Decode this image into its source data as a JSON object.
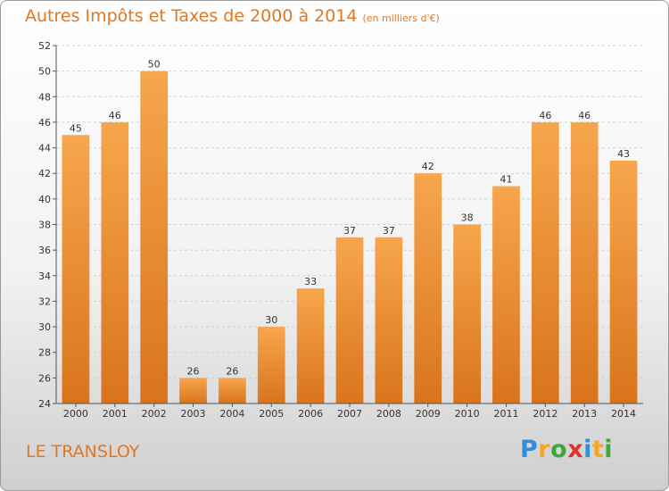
{
  "title": "Autres Impôts et Taxes de 2000 à 2014",
  "title_unit": "(en milliers d'€)",
  "town": "LE TRANSLOY",
  "logo": {
    "letters": [
      {
        "ch": "P",
        "color": "#2f8fd8"
      },
      {
        "ch": "r",
        "color": "#f5a623"
      },
      {
        "ch": "o",
        "color": "#3aa83a"
      },
      {
        "ch": "x",
        "color": "#e0322a"
      },
      {
        "ch": "i",
        "color": "#2f8fd8"
      },
      {
        "ch": "t",
        "color": "#f5a623"
      },
      {
        "ch": "i",
        "color": "#3aa83a"
      }
    ]
  },
  "colors": {
    "bar_top": "#f7a64d",
    "bar_bottom": "#d9741c",
    "accent": "#e07722"
  },
  "chart_data": {
    "type": "bar",
    "title": "Autres Impôts et Taxes de 2000 à 2014",
    "categories": [
      "2000",
      "2001",
      "2002",
      "2003",
      "2004",
      "2005",
      "2006",
      "2007",
      "2008",
      "2009",
      "2010",
      "2011",
      "2012",
      "2013",
      "2014"
    ],
    "values": [
      45,
      46,
      50,
      26,
      26,
      30,
      33,
      37,
      37,
      42,
      38,
      41,
      46,
      46,
      43
    ],
    "ylim": [
      24,
      52
    ],
    "yticks": [
      24,
      26,
      28,
      30,
      32,
      34,
      36,
      38,
      40,
      42,
      44,
      46,
      48,
      50,
      52
    ],
    "grid": true,
    "xlabel": "",
    "ylabel": ""
  }
}
